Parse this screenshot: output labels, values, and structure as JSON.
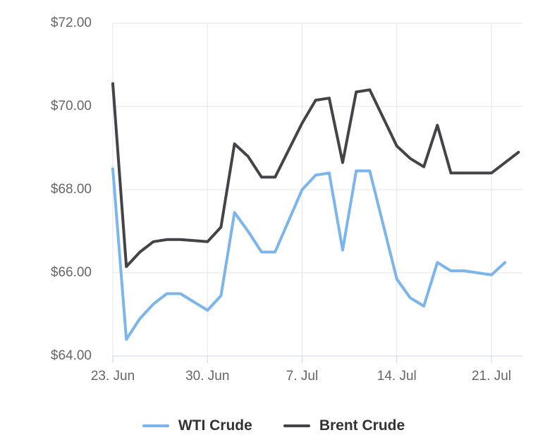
{
  "chart_data": {
    "type": "line",
    "title": "",
    "grid": true,
    "legend_position": "bottom-center",
    "x_axis": {
      "tick_labels": [
        "23. Jun",
        "30. Jun",
        "7. Jul",
        "14. Jul",
        "21. Jul"
      ],
      "tick_days": [
        0,
        7,
        14,
        21,
        28
      ]
    },
    "y_axis": {
      "tick_labels": [
        "$72.00",
        "$70.00",
        "$68.00",
        "$66.00",
        "$64.00"
      ],
      "tick_values": [
        72,
        70,
        68,
        66,
        64
      ],
      "min": 64,
      "max": 72,
      "prefix": "$"
    },
    "series": [
      {
        "name": "WTI Crude",
        "color": "#7cb5ec",
        "points": [
          {
            "date": "23. Jun",
            "day": 0,
            "value": 68.5
          },
          {
            "date": "24. Jun",
            "day": 1,
            "value": 64.4
          },
          {
            "date": "25. Jun",
            "day": 2,
            "value": 64.9
          },
          {
            "date": "26. Jun",
            "day": 3,
            "value": 65.25
          },
          {
            "date": "27. Jun",
            "day": 4,
            "value": 65.5
          },
          {
            "date": "28. Jun",
            "day": 5,
            "value": 65.5
          },
          {
            "date": "30. Jun",
            "day": 7,
            "value": 65.1
          },
          {
            "date": "1. Jul",
            "day": 8,
            "value": 65.45
          },
          {
            "date": "2. Jul",
            "day": 9,
            "value": 67.45
          },
          {
            "date": "3. Jul",
            "day": 10,
            "value": 67.0
          },
          {
            "date": "4. Jul",
            "day": 11,
            "value": 66.5
          },
          {
            "date": "5. Jul",
            "day": 12,
            "value": 66.5
          },
          {
            "date": "7. Jul",
            "day": 14,
            "value": 68.0
          },
          {
            "date": "8. Jul",
            "day": 15,
            "value": 68.35
          },
          {
            "date": "9. Jul",
            "day": 16,
            "value": 68.4
          },
          {
            "date": "10. Jul",
            "day": 17,
            "value": 66.55
          },
          {
            "date": "11. Jul",
            "day": 18,
            "value": 68.45
          },
          {
            "date": "12. Jul",
            "day": 19,
            "value": 68.45
          },
          {
            "date": "14. Jul",
            "day": 21,
            "value": 65.85
          },
          {
            "date": "15. Jul",
            "day": 22,
            "value": 65.4
          },
          {
            "date": "16. Jul",
            "day": 23,
            "value": 65.2
          },
          {
            "date": "17. Jul",
            "day": 24,
            "value": 66.25
          },
          {
            "date": "18. Jul",
            "day": 25,
            "value": 66.05
          },
          {
            "date": "19. Jul",
            "day": 26,
            "value": 66.05
          },
          {
            "date": "21. Jul",
            "day": 28,
            "value": 65.95
          },
          {
            "date": "22. Jul",
            "day": 29,
            "value": 66.25
          }
        ]
      },
      {
        "name": "Brent Crude",
        "color": "#434348",
        "points": [
          {
            "date": "23. Jun",
            "day": 0,
            "value": 70.55
          },
          {
            "date": "24. Jun",
            "day": 1,
            "value": 66.15
          },
          {
            "date": "25. Jun",
            "day": 2,
            "value": 66.5
          },
          {
            "date": "26. Jun",
            "day": 3,
            "value": 66.75
          },
          {
            "date": "27. Jun",
            "day": 4,
            "value": 66.8
          },
          {
            "date": "28. Jun",
            "day": 5,
            "value": 66.8
          },
          {
            "date": "30. Jun",
            "day": 7,
            "value": 66.75
          },
          {
            "date": "1. Jul",
            "day": 8,
            "value": 67.1
          },
          {
            "date": "2. Jul",
            "day": 9,
            "value": 69.1
          },
          {
            "date": "3. Jul",
            "day": 10,
            "value": 68.8
          },
          {
            "date": "4. Jul",
            "day": 11,
            "value": 68.3
          },
          {
            "date": "5. Jul",
            "day": 12,
            "value": 68.3
          },
          {
            "date": "7. Jul",
            "day": 14,
            "value": 69.6
          },
          {
            "date": "8. Jul",
            "day": 15,
            "value": 70.15
          },
          {
            "date": "9. Jul",
            "day": 16,
            "value": 70.2
          },
          {
            "date": "10. Jul",
            "day": 17,
            "value": 68.65
          },
          {
            "date": "11. Jul",
            "day": 18,
            "value": 70.35
          },
          {
            "date": "12. Jul",
            "day": 19,
            "value": 70.4
          },
          {
            "date": "14. Jul",
            "day": 21,
            "value": 69.05
          },
          {
            "date": "15. Jul",
            "day": 22,
            "value": 68.75
          },
          {
            "date": "16. Jul",
            "day": 23,
            "value": 68.55
          },
          {
            "date": "17. Jul",
            "day": 24,
            "value": 69.55
          },
          {
            "date": "18. Jul",
            "day": 25,
            "value": 68.4
          },
          {
            "date": "19. Jul",
            "day": 26,
            "value": 68.4
          },
          {
            "date": "21. Jul",
            "day": 28,
            "value": 68.4
          },
          {
            "date": "23. Jul",
            "day": 30,
            "value": 68.9
          }
        ]
      }
    ]
  },
  "legend": {
    "items": [
      {
        "label": "WTI Crude",
        "color": "#7cb5ec"
      },
      {
        "label": "Brent Crude",
        "color": "#434348"
      }
    ]
  },
  "colors": {
    "background": "#ffffff",
    "gridline": "#e6e6e6",
    "axis_line": "#ccd6eb",
    "axis_label_text": "#666666",
    "legend_text": "#333333",
    "wti_line": "#7cb5ec",
    "brent_line": "#434348"
  }
}
